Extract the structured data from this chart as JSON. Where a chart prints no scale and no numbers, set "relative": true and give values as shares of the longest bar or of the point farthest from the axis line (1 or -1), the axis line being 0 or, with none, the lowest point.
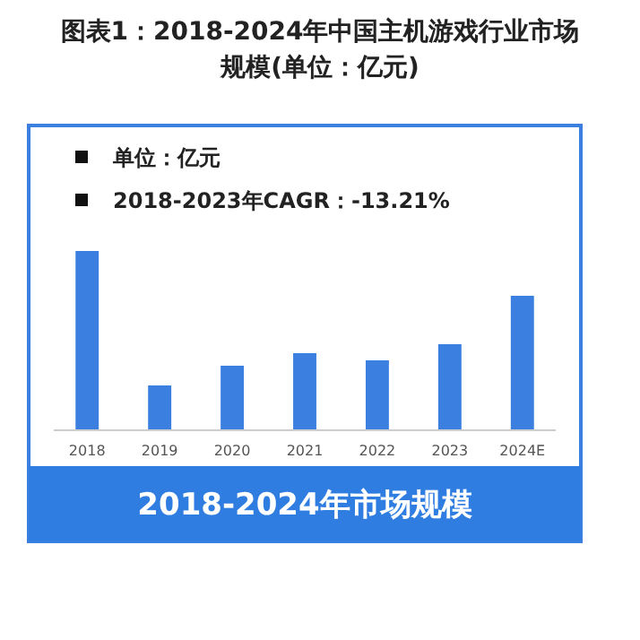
{
  "chart_data": {
    "type": "bar",
    "title": "图表1：2018-2024年中国主机游戏行业市场规模(单位：亿元)",
    "categories": [
      "2018",
      "2019",
      "2020",
      "2021",
      "2022",
      "2023",
      "2024E"
    ],
    "values": [
      1,
      0.25,
      0.36,
      0.43,
      0.39,
      0.48,
      0.75
    ],
    "color": "#3b7fe0",
    "relative": true,
    "grid": false,
    "xlabel": "2018-2024年市场规模",
    "annotations": [
      "单位：亿元",
      "2018-2023年CAGR：-13.21%"
    ]
  }
}
